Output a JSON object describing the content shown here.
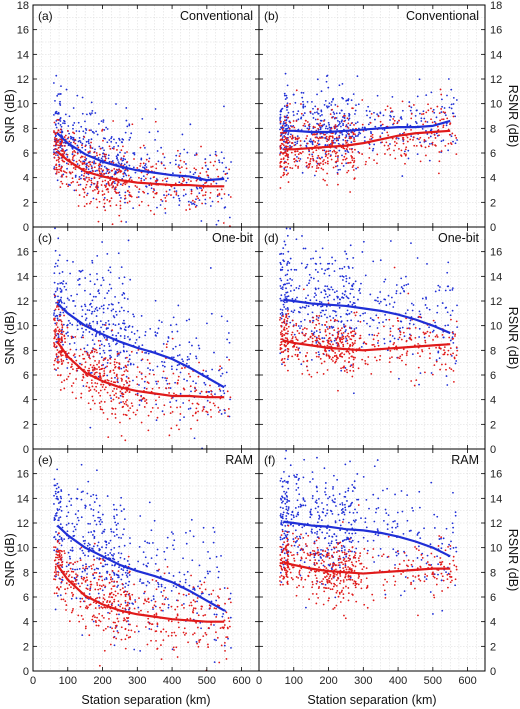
{
  "colors": {
    "blue_series": "#1f2fd6",
    "red_series": "#e01a1a",
    "grid": "#d8d8d8",
    "axis": "#000000"
  },
  "figure": {
    "xlabel": "Station separation (km)",
    "left_ylabel": "SNR (dB)",
    "right_ylabel": "RSNR (dB)"
  },
  "chart_data": [
    {
      "type": "scatter",
      "panel": "(a)",
      "title": "Conventional",
      "ylabel": "SNR (dB)",
      "xlim": [
        0,
        650
      ],
      "ylim": [
        0,
        18
      ],
      "xticks": [
        0,
        100,
        200,
        300,
        400,
        500,
        600
      ],
      "yticks": [
        0,
        2,
        4,
        6,
        8,
        10,
        12,
        14,
        16,
        18
      ],
      "grid": true,
      "trend": {
        "blue": {
          "x": [
            70,
            100,
            150,
            200,
            250,
            300,
            350,
            400,
            450,
            500,
            550
          ],
          "y": [
            7.6,
            6.8,
            5.9,
            5.3,
            4.9,
            4.6,
            4.4,
            4.2,
            4.1,
            3.8,
            3.9
          ]
        },
        "red": {
          "x": [
            70,
            100,
            150,
            200,
            250,
            300,
            350,
            400,
            450,
            500,
            550
          ],
          "y": [
            6.1,
            5.4,
            4.5,
            4.1,
            3.8,
            3.6,
            3.5,
            3.4,
            3.4,
            3.3,
            3.3
          ]
        }
      },
      "scatter_blue": {
        "center": [
          5.8,
          2.3
        ],
        "spread": 1.6
      },
      "scatter_red": {
        "center": [
          4.4,
          1.4
        ],
        "spread": 1.3
      },
      "y_right_side": false
    },
    {
      "type": "scatter",
      "panel": "(b)",
      "title": "Conventional",
      "ylabel": "RSNR (dB)",
      "xlim": [
        0,
        650
      ],
      "ylim": [
        0,
        18
      ],
      "xticks": [
        0,
        100,
        200,
        300,
        400,
        500,
        600
      ],
      "yticks": [
        0,
        2,
        4,
        6,
        8,
        10,
        12,
        14,
        16,
        18
      ],
      "grid": true,
      "trend": {
        "blue": {
          "x": [
            70,
            100,
            150,
            200,
            250,
            300,
            350,
            400,
            450,
            500,
            550
          ],
          "y": [
            7.8,
            7.8,
            7.7,
            7.7,
            7.8,
            7.9,
            8.0,
            8.1,
            8.1,
            8.2,
            8.6
          ]
        },
        "red": {
          "x": [
            70,
            100,
            150,
            200,
            250,
            300,
            350,
            400,
            450,
            500,
            550
          ],
          "y": [
            6.3,
            6.3,
            6.4,
            6.5,
            6.6,
            6.8,
            7.1,
            7.4,
            7.6,
            7.7,
            7.8
          ]
        }
      },
      "scatter_blue": {
        "center": [
          7.9,
          0.1
        ],
        "spread": 1.4
      },
      "scatter_red": {
        "center": [
          6.8,
          0.8
        ],
        "spread": 1.3
      },
      "y_right_side": true
    },
    {
      "type": "scatter",
      "panel": "(c)",
      "title": "One-bit",
      "ylabel": "SNR (dB)",
      "xlim": [
        0,
        650
      ],
      "ylim": [
        0,
        18
      ],
      "xticks": [
        0,
        100,
        200,
        300,
        400,
        500,
        600
      ],
      "yticks": [
        0,
        2,
        4,
        6,
        8,
        10,
        12,
        14,
        16,
        18
      ],
      "grid": true,
      "trend": {
        "blue": {
          "x": [
            70,
            100,
            150,
            200,
            250,
            300,
            350,
            400,
            450,
            500,
            550
          ],
          "y": [
            11.8,
            11.0,
            10.0,
            9.3,
            8.7,
            8.2,
            7.8,
            7.3,
            6.6,
            5.8,
            5.0
          ]
        },
        "red": {
          "x": [
            70,
            100,
            150,
            200,
            250,
            300,
            350,
            400,
            450,
            500,
            550
          ],
          "y": [
            8.7,
            7.5,
            6.2,
            5.5,
            5.0,
            4.7,
            4.5,
            4.3,
            4.3,
            4.2,
            4.2
          ]
        }
      },
      "scatter_blue": {
        "center": [
          9.3,
          3.2
        ],
        "spread": 2.4
      },
      "scatter_red": {
        "center": [
          5.5,
          1.6
        ],
        "spread": 1.4
      },
      "y_right_side": false
    },
    {
      "type": "scatter",
      "panel": "(d)",
      "title": "One-bit",
      "ylabel": "RSNR (dB)",
      "xlim": [
        0,
        650
      ],
      "ylim": [
        0,
        18
      ],
      "xticks": [
        0,
        100,
        200,
        300,
        400,
        500,
        600
      ],
      "yticks": [
        0,
        2,
        4,
        6,
        8,
        10,
        12,
        14,
        16,
        18
      ],
      "grid": true,
      "trend": {
        "blue": {
          "x": [
            70,
            100,
            150,
            200,
            250,
            300,
            350,
            400,
            450,
            500,
            550
          ],
          "y": [
            12.1,
            12.0,
            11.8,
            11.7,
            11.6,
            11.4,
            11.2,
            10.9,
            10.5,
            10.0,
            9.4
          ]
        },
        "red": {
          "x": [
            70,
            100,
            150,
            200,
            250,
            300,
            350,
            400,
            450,
            500,
            550
          ],
          "y": [
            8.8,
            8.6,
            8.4,
            8.2,
            8.1,
            8.0,
            8.1,
            8.2,
            8.3,
            8.4,
            8.5
          ]
        }
      },
      "scatter_blue": {
        "center": [
          11.4,
          0.9
        ],
        "spread": 2.2
      },
      "scatter_red": {
        "center": [
          8.3,
          0.0
        ],
        "spread": 1.2
      },
      "y_right_side": true
    },
    {
      "type": "scatter",
      "panel": "(e)",
      "title": "RAM",
      "ylabel": "SNR (dB)",
      "xlim": [
        0,
        650
      ],
      "ylim": [
        0,
        18
      ],
      "xticks": [
        0,
        100,
        200,
        300,
        400,
        500,
        600
      ],
      "yticks": [
        0,
        2,
        4,
        6,
        8,
        10,
        12,
        14,
        16,
        18
      ],
      "grid": true,
      "trend": {
        "blue": {
          "x": [
            70,
            100,
            150,
            200,
            250,
            300,
            350,
            400,
            450,
            500,
            550
          ],
          "y": [
            11.8,
            11.0,
            10.0,
            9.3,
            8.6,
            8.1,
            7.7,
            7.2,
            6.5,
            5.7,
            4.9
          ]
        },
        "red": {
          "x": [
            70,
            100,
            150,
            200,
            250,
            300,
            350,
            400,
            450,
            500,
            550
          ],
          "y": [
            8.6,
            7.4,
            6.1,
            5.4,
            4.9,
            4.6,
            4.4,
            4.2,
            4.1,
            4.0,
            4.0
          ]
        }
      },
      "scatter_blue": {
        "center": [
          9.2,
          3.2
        ],
        "spread": 2.4
      },
      "scatter_red": {
        "center": [
          5.4,
          1.6
        ],
        "spread": 1.4
      },
      "y_right_side": false
    },
    {
      "type": "scatter",
      "panel": "(f)",
      "title": "RAM",
      "ylabel": "RSNR (dB)",
      "xlim": [
        0,
        650
      ],
      "ylim": [
        0,
        18
      ],
      "xticks": [
        0,
        100,
        200,
        300,
        400,
        500,
        600
      ],
      "yticks": [
        0,
        2,
        4,
        6,
        8,
        10,
        12,
        14,
        16,
        18
      ],
      "grid": true,
      "trend": {
        "blue": {
          "x": [
            70,
            100,
            150,
            200,
            250,
            300,
            350,
            400,
            450,
            500,
            550
          ],
          "y": [
            12.1,
            12.0,
            11.8,
            11.7,
            11.5,
            11.4,
            11.2,
            10.9,
            10.5,
            10.0,
            9.3
          ]
        },
        "red": {
          "x": [
            70,
            100,
            150,
            200,
            250,
            300,
            350,
            400,
            450,
            500,
            550
          ],
          "y": [
            8.8,
            8.6,
            8.3,
            8.1,
            8.0,
            7.9,
            8.0,
            8.1,
            8.2,
            8.3,
            8.3
          ]
        }
      },
      "scatter_blue": {
        "center": [
          11.4,
          0.9
        ],
        "spread": 2.2
      },
      "scatter_red": {
        "center": [
          8.2,
          0.0
        ],
        "spread": 1.2
      },
      "y_right_side": true
    }
  ]
}
